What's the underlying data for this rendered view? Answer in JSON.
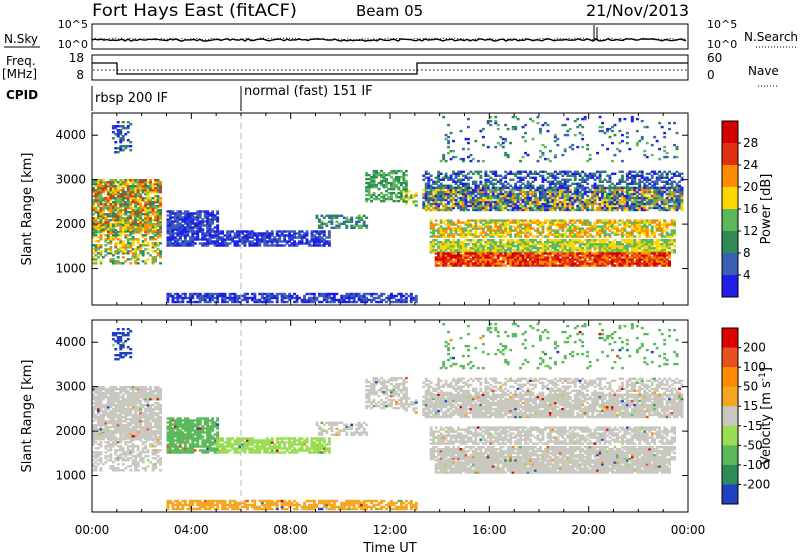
{
  "header": {
    "title": "Fort Hays East (fitACF)",
    "beam": "Beam 05",
    "date": "21/Nov/2013"
  },
  "noise_panel": {
    "left_label": "N.Sky",
    "right_label": "N.Search",
    "left_ticks": [
      "10^5",
      "10^0"
    ],
    "right_ticks": [
      "10^5",
      "10^0"
    ]
  },
  "freq_panel": {
    "left_label_1": "Freq.",
    "left_label_2": "[MHz]",
    "right_label": "Nave",
    "left_ticks": [
      "18",
      "8"
    ],
    "right_ticks": [
      "60",
      "0"
    ]
  },
  "cpid": {
    "label": "CPID",
    "modes": [
      {
        "name": "rbsp 200 IF",
        "start_h": 0
      },
      {
        "name": "normal (fast) 151 IF",
        "start_h": 6
      }
    ]
  },
  "chart_data": [
    {
      "type": "heatmap",
      "name": "power",
      "ylabel": "Slant Range [km]",
      "xlabel": "Time UT",
      "xlim": [
        0,
        24
      ],
      "ylim": [
        180,
        4500
      ],
      "x_ticks": [
        "00:00",
        "04:00",
        "08:00",
        "12:00",
        "16:00",
        "20:00",
        "00:00"
      ],
      "y_ticks": [
        1000,
        2000,
        3000,
        4000
      ],
      "colorbar": {
        "label": "Power [dB]",
        "ticks": [
          "4",
          "8",
          "12",
          "16",
          "20",
          "24",
          "28"
        ],
        "colors": [
          "#1e1ee6",
          "#3b5fb4",
          "#2e8b57",
          "#5cb85c",
          "#ffd700",
          "#ff8c00",
          "#e03010",
          "#d40000"
        ]
      }
    },
    {
      "type": "heatmap",
      "name": "velocity",
      "ylabel": "Slant Range [km]",
      "xlabel": "Time UT",
      "xlim": [
        0,
        24
      ],
      "ylim": [
        180,
        4500
      ],
      "x_ticks": [
        "00:00",
        "04:00",
        "08:00",
        "12:00",
        "16:00",
        "20:00",
        "00:00"
      ],
      "y_ticks": [
        1000,
        2000,
        3000,
        4000
      ],
      "colorbar": {
        "label": "Velocity [m s^-1]",
        "ticks": [
          "200",
          "100",
          "50",
          "15",
          "-15",
          "-50",
          "-100",
          "-200"
        ],
        "colors": [
          "#2040c0",
          "#2e8b57",
          "#5cb85c",
          "#99dd55",
          "#c8c8c0",
          "#f5a623",
          "#ff8c00",
          "#e85020",
          "#dd0000"
        ]
      }
    }
  ]
}
